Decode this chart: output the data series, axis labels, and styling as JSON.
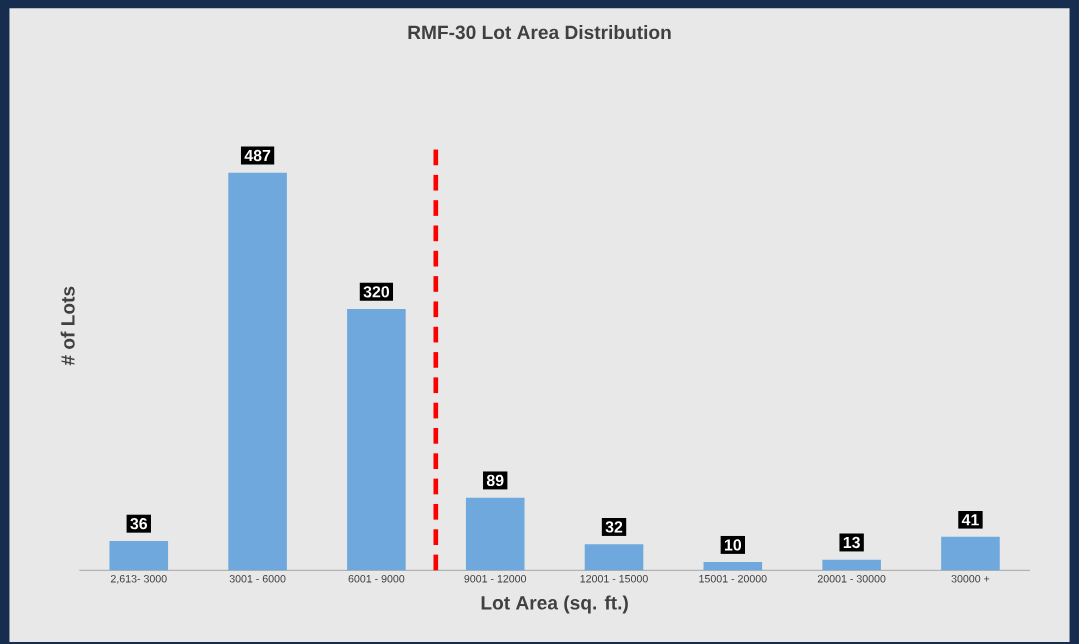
{
  "chart_data": {
    "type": "bar",
    "title": "RMF-30 Lot Area Distribution",
    "xlabel": "Lot Area (sq. ft.)",
    "ylabel": "# of Lots",
    "categories": [
      "2,613- 3000",
      "3001 - 6000",
      "6001 - 9000",
      "9001 - 12000",
      "12001 - 15000",
      "15001 - 20000",
      "20001 - 30000",
      "30000 +"
    ],
    "values": [
      36,
      487,
      320,
      89,
      32,
      10,
      13,
      41
    ],
    "color": "#6fa8dc",
    "data_labels": true,
    "tick_labels": "x"
  }
}
